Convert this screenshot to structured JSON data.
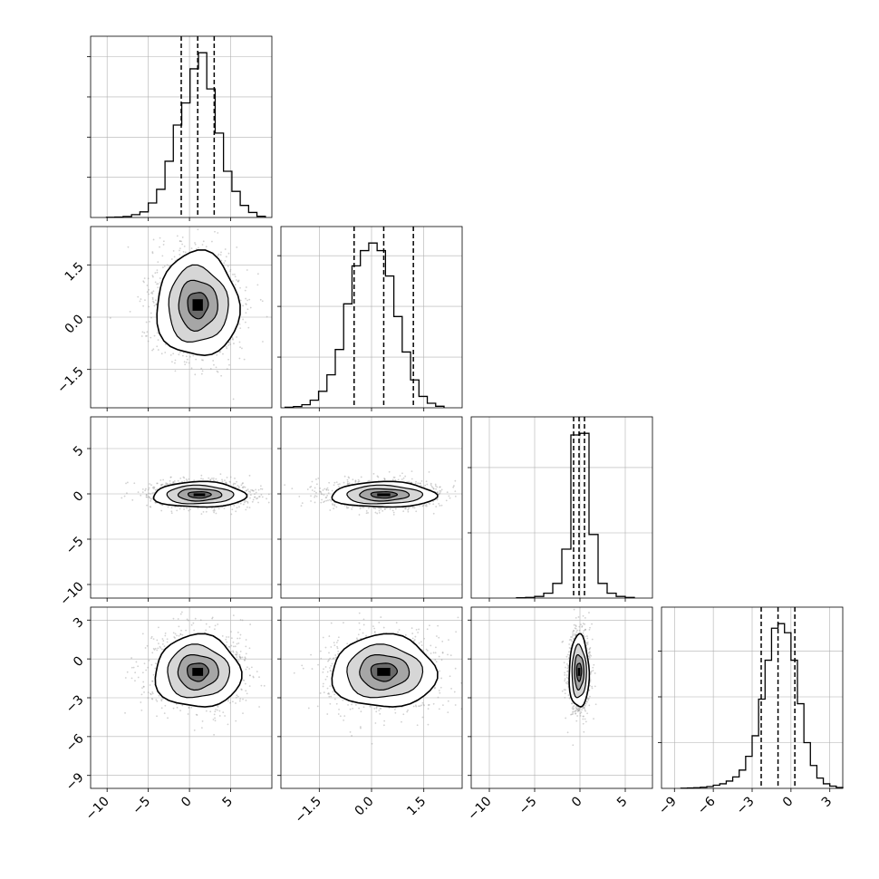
{
  "figure": {
    "type": "corner-plot",
    "n_params": 4,
    "grid_on": true,
    "colors": {
      "line": "#000000",
      "grid": "#b0b0b0",
      "points": "#9a9a9a",
      "density": [
        "#ffffff",
        "#d6d6d6",
        "#a6a6a6",
        "#6a6a6a",
        "#000000"
      ]
    }
  },
  "chart_data": [
    {
      "type": "histogram",
      "panel": "marginal-0",
      "param": 0,
      "xlim": [
        -12,
        10
      ],
      "bin_edges": [
        -10.08,
        -9.06,
        -8.05,
        -7.03,
        -6.02,
        -5.0,
        -3.99,
        -2.97,
        -1.96,
        -0.94,
        0.07,
        1.09,
        2.1,
        3.12,
        4.13,
        5.15,
        6.16,
        7.18,
        8.19,
        9.21
      ],
      "counts": [
        1,
        2,
        5,
        14,
        28,
        72,
        140,
        280,
        460,
        570,
        740,
        820,
        640,
        420,
        230,
        130,
        60,
        25,
        6
      ],
      "quantiles": [
        -1.0,
        1.0,
        3.0
      ],
      "x_ticks": [
        -10,
        -5,
        0,
        5
      ],
      "x_tick_labels": [
        "−10",
        "−5",
        "0",
        "5"
      ]
    },
    {
      "type": "histogram",
      "panel": "marginal-1",
      "param": 1,
      "xlim": [
        -2.6,
        2.6
      ],
      "bin_edges": [
        -2.48,
        -2.24,
        -2.0,
        -1.76,
        -1.52,
        -1.28,
        -1.04,
        -0.8,
        -0.56,
        -0.32,
        -0.08,
        0.16,
        0.4,
        0.64,
        0.88,
        1.12,
        1.36,
        1.6,
        1.84,
        2.08
      ],
      "counts": [
        2,
        5,
        12,
        30,
        65,
        130,
        230,
        410,
        560,
        620,
        650,
        620,
        520,
        360,
        220,
        110,
        45,
        18,
        6
      ],
      "quantiles": [
        -0.5,
        0.35,
        1.2
      ],
      "x_ticks": [
        -1.5,
        0.0,
        1.5
      ],
      "x_tick_labels": [
        "−1.5",
        "0.0",
        "1.5"
      ]
    },
    {
      "type": "histogram",
      "panel": "marginal-2",
      "param": 2,
      "xlim": [
        -12,
        8
      ],
      "bin_edges": [
        -7.0,
        -6.0,
        -5.0,
        -4.0,
        -3.0,
        -2.0,
        -1.0,
        0.0,
        1.0,
        2.0,
        3.0,
        4.0,
        5.0,
        6.0
      ],
      "counts": [
        2,
        4,
        10,
        30,
        90,
        300,
        1000,
        1010,
        390,
        90,
        30,
        10,
        4
      ],
      "quantiles": [
        -0.7,
        -0.1,
        0.5
      ],
      "x_ticks": [
        -10,
        -5,
        0,
        5
      ],
      "x_tick_labels": [
        "−10",
        "−5",
        "0",
        "5"
      ]
    },
    {
      "type": "histogram",
      "panel": "marginal-3",
      "param": 3,
      "xlim": [
        -10,
        4
      ],
      "bin_edges": [
        -8.5,
        -8.0,
        -7.5,
        -7.0,
        -6.5,
        -6.0,
        -5.5,
        -5.0,
        -4.5,
        -4.0,
        -3.5,
        -3.0,
        -2.5,
        -2.0,
        -1.5,
        -1.0,
        -0.5,
        0.0,
        0.5,
        1.0,
        1.5,
        2.0,
        2.5,
        3.0,
        3.5,
        4.0
      ],
      "counts": [
        1,
        2,
        3,
        5,
        8,
        14,
        20,
        32,
        50,
        80,
        140,
        230,
        390,
        560,
        700,
        720,
        680,
        560,
        370,
        200,
        100,
        45,
        20,
        10,
        4
      ],
      "quantiles": [
        -2.3,
        -1.0,
        0.3
      ],
      "x_ticks": [
        -9,
        -6,
        -3,
        0,
        3
      ],
      "x_tick_labels": [
        "−9",
        "−6",
        "−3",
        "0",
        "3"
      ]
    },
    {
      "type": "scatter-density",
      "panel": "joint-1-0",
      "x_param": 0,
      "y_param": 1,
      "center": [
        1.0,
        0.35
      ],
      "sigma": [
        2.5,
        0.75
      ]
    },
    {
      "type": "scatter-density",
      "panel": "joint-2-0",
      "x_param": 0,
      "y_param": 2,
      "center": [
        1.2,
        -0.1
      ],
      "sigma": [
        2.8,
        0.7
      ]
    },
    {
      "type": "scatter-density",
      "panel": "joint-2-1",
      "x_param": 1,
      "y_param": 2,
      "center": [
        0.35,
        -0.1
      ],
      "sigma": [
        0.75,
        0.7
      ]
    },
    {
      "type": "scatter-density",
      "panel": "joint-3-0",
      "x_param": 0,
      "y_param": 3,
      "center": [
        1.0,
        -1.0
      ],
      "sigma": [
        2.6,
        1.4
      ]
    },
    {
      "type": "scatter-density",
      "panel": "joint-3-1",
      "x_param": 1,
      "y_param": 3,
      "center": [
        0.35,
        -1.0
      ],
      "sigma": [
        0.75,
        1.4
      ]
    },
    {
      "type": "scatter-density",
      "panel": "joint-3-2",
      "x_param": 2,
      "y_param": 3,
      "center": [
        -0.1,
        -1.0
      ],
      "sigma": [
        0.55,
        1.4
      ]
    }
  ],
  "axes": {
    "param_x": [
      {
        "lim": [
          -12,
          10
        ],
        "ticks": [
          -10,
          -5,
          0,
          5
        ],
        "labels": [
          "−10",
          "−5",
          "0",
          "5"
        ]
      },
      {
        "lim": [
          -2.6,
          2.6
        ],
        "ticks": [
          -1.5,
          0.0,
          1.5
        ],
        "labels": [
          "−1.5",
          "0.0",
          "1.5"
        ]
      },
      {
        "lim": [
          -12,
          8
        ],
        "ticks": [
          -10,
          -5,
          0,
          5
        ],
        "labels": [
          "−10",
          "−5",
          "0",
          "5"
        ]
      },
      {
        "lim": [
          -10,
          4
        ],
        "ticks": [
          -9,
          -6,
          -3,
          0,
          3
        ],
        "labels": [
          "−9",
          "−6",
          "−3",
          "0",
          "3"
        ]
      }
    ],
    "param_y": [
      null,
      {
        "lim": [
          -2.6,
          2.6
        ],
        "ticks": [
          -1.5,
          0.0,
          1.5
        ],
        "labels": [
          "−1.5",
          "0.0",
          "1.5"
        ]
      },
      {
        "lim": [
          -11.5,
          8.5
        ],
        "ticks": [
          -10,
          -5,
          0,
          5
        ],
        "labels": [
          "−10",
          "−5",
          "0",
          "5"
        ]
      },
      {
        "lim": [
          -10,
          4
        ],
        "ticks": [
          -9,
          -6,
          -3,
          0,
          3
        ],
        "labels": [
          "−9",
          "−6",
          "−3",
          "0",
          "3"
        ]
      }
    ]
  }
}
